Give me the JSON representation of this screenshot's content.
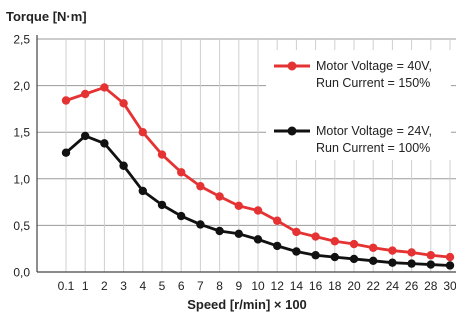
{
  "chart_data": {
    "type": "line",
    "ylabel": "Torque [N·m]",
    "xlabel": "Speed [r/min] × 100",
    "categories": [
      "0.1",
      "1",
      "2",
      "3",
      "4",
      "5",
      "6",
      "7",
      "8",
      "9",
      "10",
      "12",
      "14",
      "16",
      "18",
      "20",
      "22",
      "24",
      "26",
      "28",
      "30"
    ],
    "ylim": [
      0,
      2.5
    ],
    "yticks": [
      "0,0",
      "0,5",
      "1,0",
      "1,5",
      "2,0",
      "2,5"
    ],
    "ytick_values": [
      0,
      0.5,
      1.0,
      1.5,
      2.0,
      2.5
    ],
    "grid": true,
    "legend_position": "right",
    "series": [
      {
        "name": "Motor Voltage = 40V, Run Current = 150%",
        "legend_lines": [
          "Motor Voltage = 40V,",
          "Run Current = 150%"
        ],
        "color": "#e53333",
        "values": [
          1.84,
          1.91,
          1.98,
          1.81,
          1.5,
          1.26,
          1.07,
          0.92,
          0.81,
          0.71,
          0.66,
          0.55,
          0.43,
          0.38,
          0.33,
          0.3,
          0.26,
          0.23,
          0.21,
          0.18,
          0.16
        ]
      },
      {
        "name": "Motor Voltage = 24V, Run Current = 100%",
        "legend_lines": [
          "Motor Voltage = 24V,",
          "Run Current = 100%"
        ],
        "color": "#111111",
        "values": [
          1.28,
          1.46,
          1.38,
          1.14,
          0.87,
          0.72,
          0.6,
          0.51,
          0.44,
          0.41,
          0.35,
          0.28,
          0.22,
          0.18,
          0.16,
          0.14,
          0.12,
          0.1,
          0.09,
          0.08,
          0.07
        ]
      }
    ]
  }
}
